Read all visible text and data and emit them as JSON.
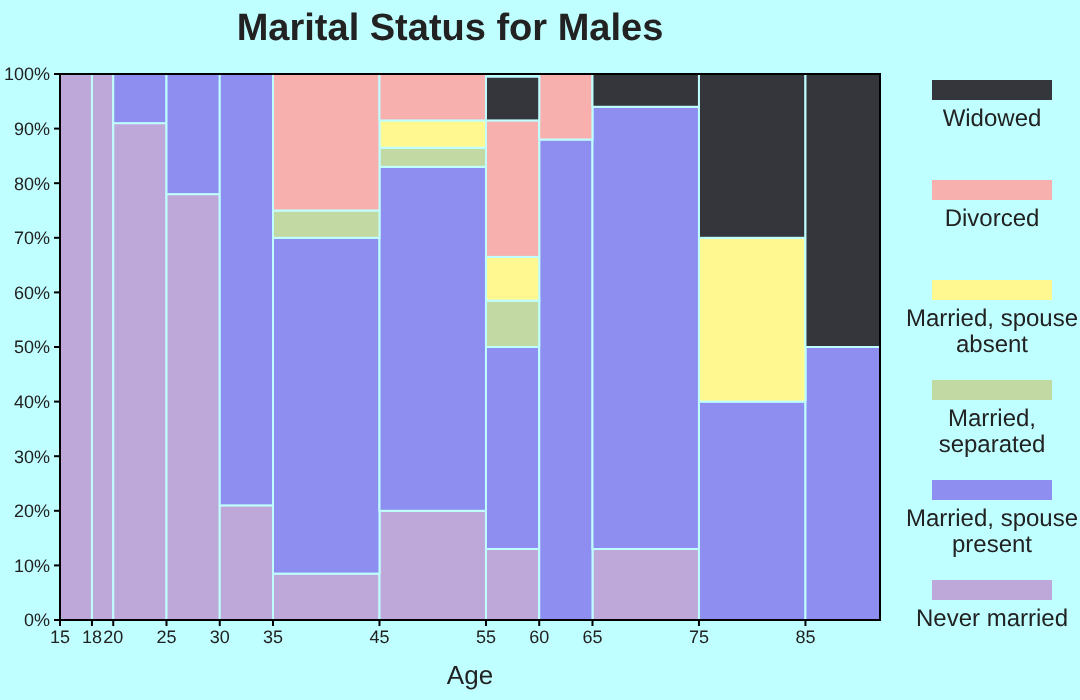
{
  "chart_data": {
    "type": "bar",
    "stacked": true,
    "title": "Marital Status for Males",
    "xlabel": "Age",
    "x": [
      16.5,
      19,
      22.5,
      27.5,
      32.5,
      40,
      50,
      57.5,
      62.5,
      70,
      80,
      88.5
    ],
    "xlim": [
      15,
      92
    ],
    "xticks": [
      15,
      18,
      20,
      25,
      30,
      35,
      45,
      55,
      60,
      65,
      75,
      85
    ],
    "ylim": [
      0,
      100
    ],
    "yticks": [
      {
        "value": 0,
        "label": "0%"
      },
      {
        "value": 10,
        "label": "10%"
      },
      {
        "value": 20,
        "label": "20%"
      },
      {
        "value": 30,
        "label": "30%"
      },
      {
        "value": 40,
        "label": "40%"
      },
      {
        "value": 50,
        "label": "50%"
      },
      {
        "value": 60,
        "label": "60%"
      },
      {
        "value": 70,
        "label": "70%"
      },
      {
        "value": 80,
        "label": "80%"
      },
      {
        "value": 90,
        "label": "90%"
      },
      {
        "value": 100,
        "label": "100%"
      }
    ],
    "grid": false,
    "legend": "right",
    "series": [
      {
        "name": "Never married",
        "color": "#bea8d9",
        "values": [
          100,
          100,
          91,
          78,
          21,
          8.5,
          20,
          13,
          0,
          13,
          0,
          0
        ]
      },
      {
        "name": "Married, spouse present",
        "color": "#8d8ef0",
        "values": [
          0,
          0,
          9,
          22,
          79,
          61.5,
          63,
          37,
          88,
          81,
          40,
          50
        ]
      },
      {
        "name": "Married, separated",
        "color": "#c2d9a4",
        "values": [
          0,
          0,
          0,
          0,
          0,
          5,
          3.5,
          8.5,
          0,
          0,
          0,
          0
        ]
      },
      {
        "name": "Married, spouse absent",
        "color": "#fff890",
        "values": [
          0,
          0,
          0,
          0,
          0,
          0,
          5,
          8,
          0,
          0,
          30,
          0
        ]
      },
      {
        "name": "Divorced",
        "color": "#f8b0ae",
        "values": [
          0,
          0,
          0,
          0,
          0,
          25,
          8.5,
          25,
          12,
          0,
          0,
          0
        ]
      },
      {
        "name": "Widowed",
        "color": "#35363b",
        "values": [
          0,
          0,
          0,
          0,
          0,
          0,
          0,
          8,
          0,
          6,
          30,
          50
        ]
      }
    ]
  }
}
